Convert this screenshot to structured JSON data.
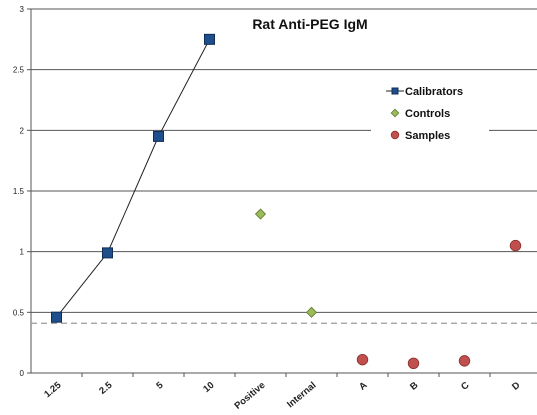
{
  "chart_data": {
    "type": "scatter",
    "title": "Rat Anti-PEG IgM",
    "xlabel": "",
    "ylabel": "",
    "categories": [
      "1.25",
      "2.5",
      "5",
      "10",
      "Positive",
      "Internal",
      "A",
      "B",
      "C",
      "D"
    ],
    "y_ticks": [
      "0",
      "0.5",
      "1",
      "1.5",
      "2",
      "2.5",
      "3"
    ],
    "ylim": [
      0,
      3
    ],
    "grid": true,
    "legend_position": "right",
    "cutoff_line": 0.41,
    "series": [
      {
        "name": "Calibrators",
        "marker": "square",
        "line": true,
        "color": "#1F4E8C",
        "points": [
          {
            "x": "1.25",
            "y": 0.46
          },
          {
            "x": "2.5",
            "y": 0.99
          },
          {
            "x": "5",
            "y": 1.95
          },
          {
            "x": "10",
            "y": 2.75
          }
        ]
      },
      {
        "name": "Controls",
        "marker": "diamond",
        "line": false,
        "color": "#9BBB59",
        "points": [
          {
            "x": "Positive",
            "y": 1.31
          },
          {
            "x": "Internal",
            "y": 0.5
          }
        ]
      },
      {
        "name": "Samples",
        "marker": "circle",
        "line": false,
        "color": "#C0504D",
        "points": [
          {
            "x": "A",
            "y": 0.11
          },
          {
            "x": "B",
            "y": 0.08
          },
          {
            "x": "C",
            "y": 0.1
          },
          {
            "x": "D",
            "y": 1.05
          }
        ]
      }
    ]
  }
}
